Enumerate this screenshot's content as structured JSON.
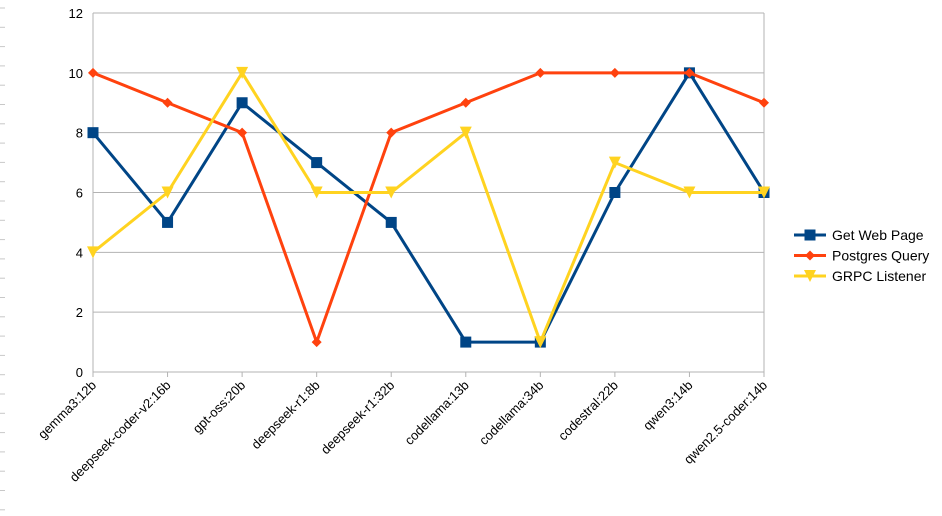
{
  "chart_data": {
    "type": "line",
    "title": "",
    "xlabel": "",
    "ylabel": "",
    "ylim": [
      0,
      12
    ],
    "y_ticks": [
      "0",
      "2",
      "4",
      "6",
      "8",
      "10",
      "12"
    ],
    "grid": "horizontal",
    "legend_position": "right",
    "categories": [
      "gemma3:12b",
      "deepseek-coder-v2:16b",
      "gpt-oss:20b",
      "deepseek-r1:8b",
      "deepseek-r1:32b",
      "codellama:13b",
      "codellama:34b",
      "codestral:22b",
      "qwen3:14b",
      "qwen2.5-coder:14b"
    ],
    "series": [
      {
        "name": "Get Web Page",
        "color": "#004586",
        "marker": "square",
        "values": [
          8,
          5,
          9,
          7,
          5,
          1,
          1,
          6,
          10,
          6
        ]
      },
      {
        "name": "Postgres Query",
        "color": "#ff420e",
        "marker": "diamond",
        "values": [
          10,
          9,
          8,
          1,
          8,
          9,
          10,
          10,
          10,
          9
        ]
      },
      {
        "name": "GRPC Listener",
        "color": "#ffd320",
        "marker": "triangle-down",
        "values": [
          4,
          6,
          10,
          6,
          6,
          8,
          1,
          7,
          6,
          6
        ]
      }
    ]
  }
}
